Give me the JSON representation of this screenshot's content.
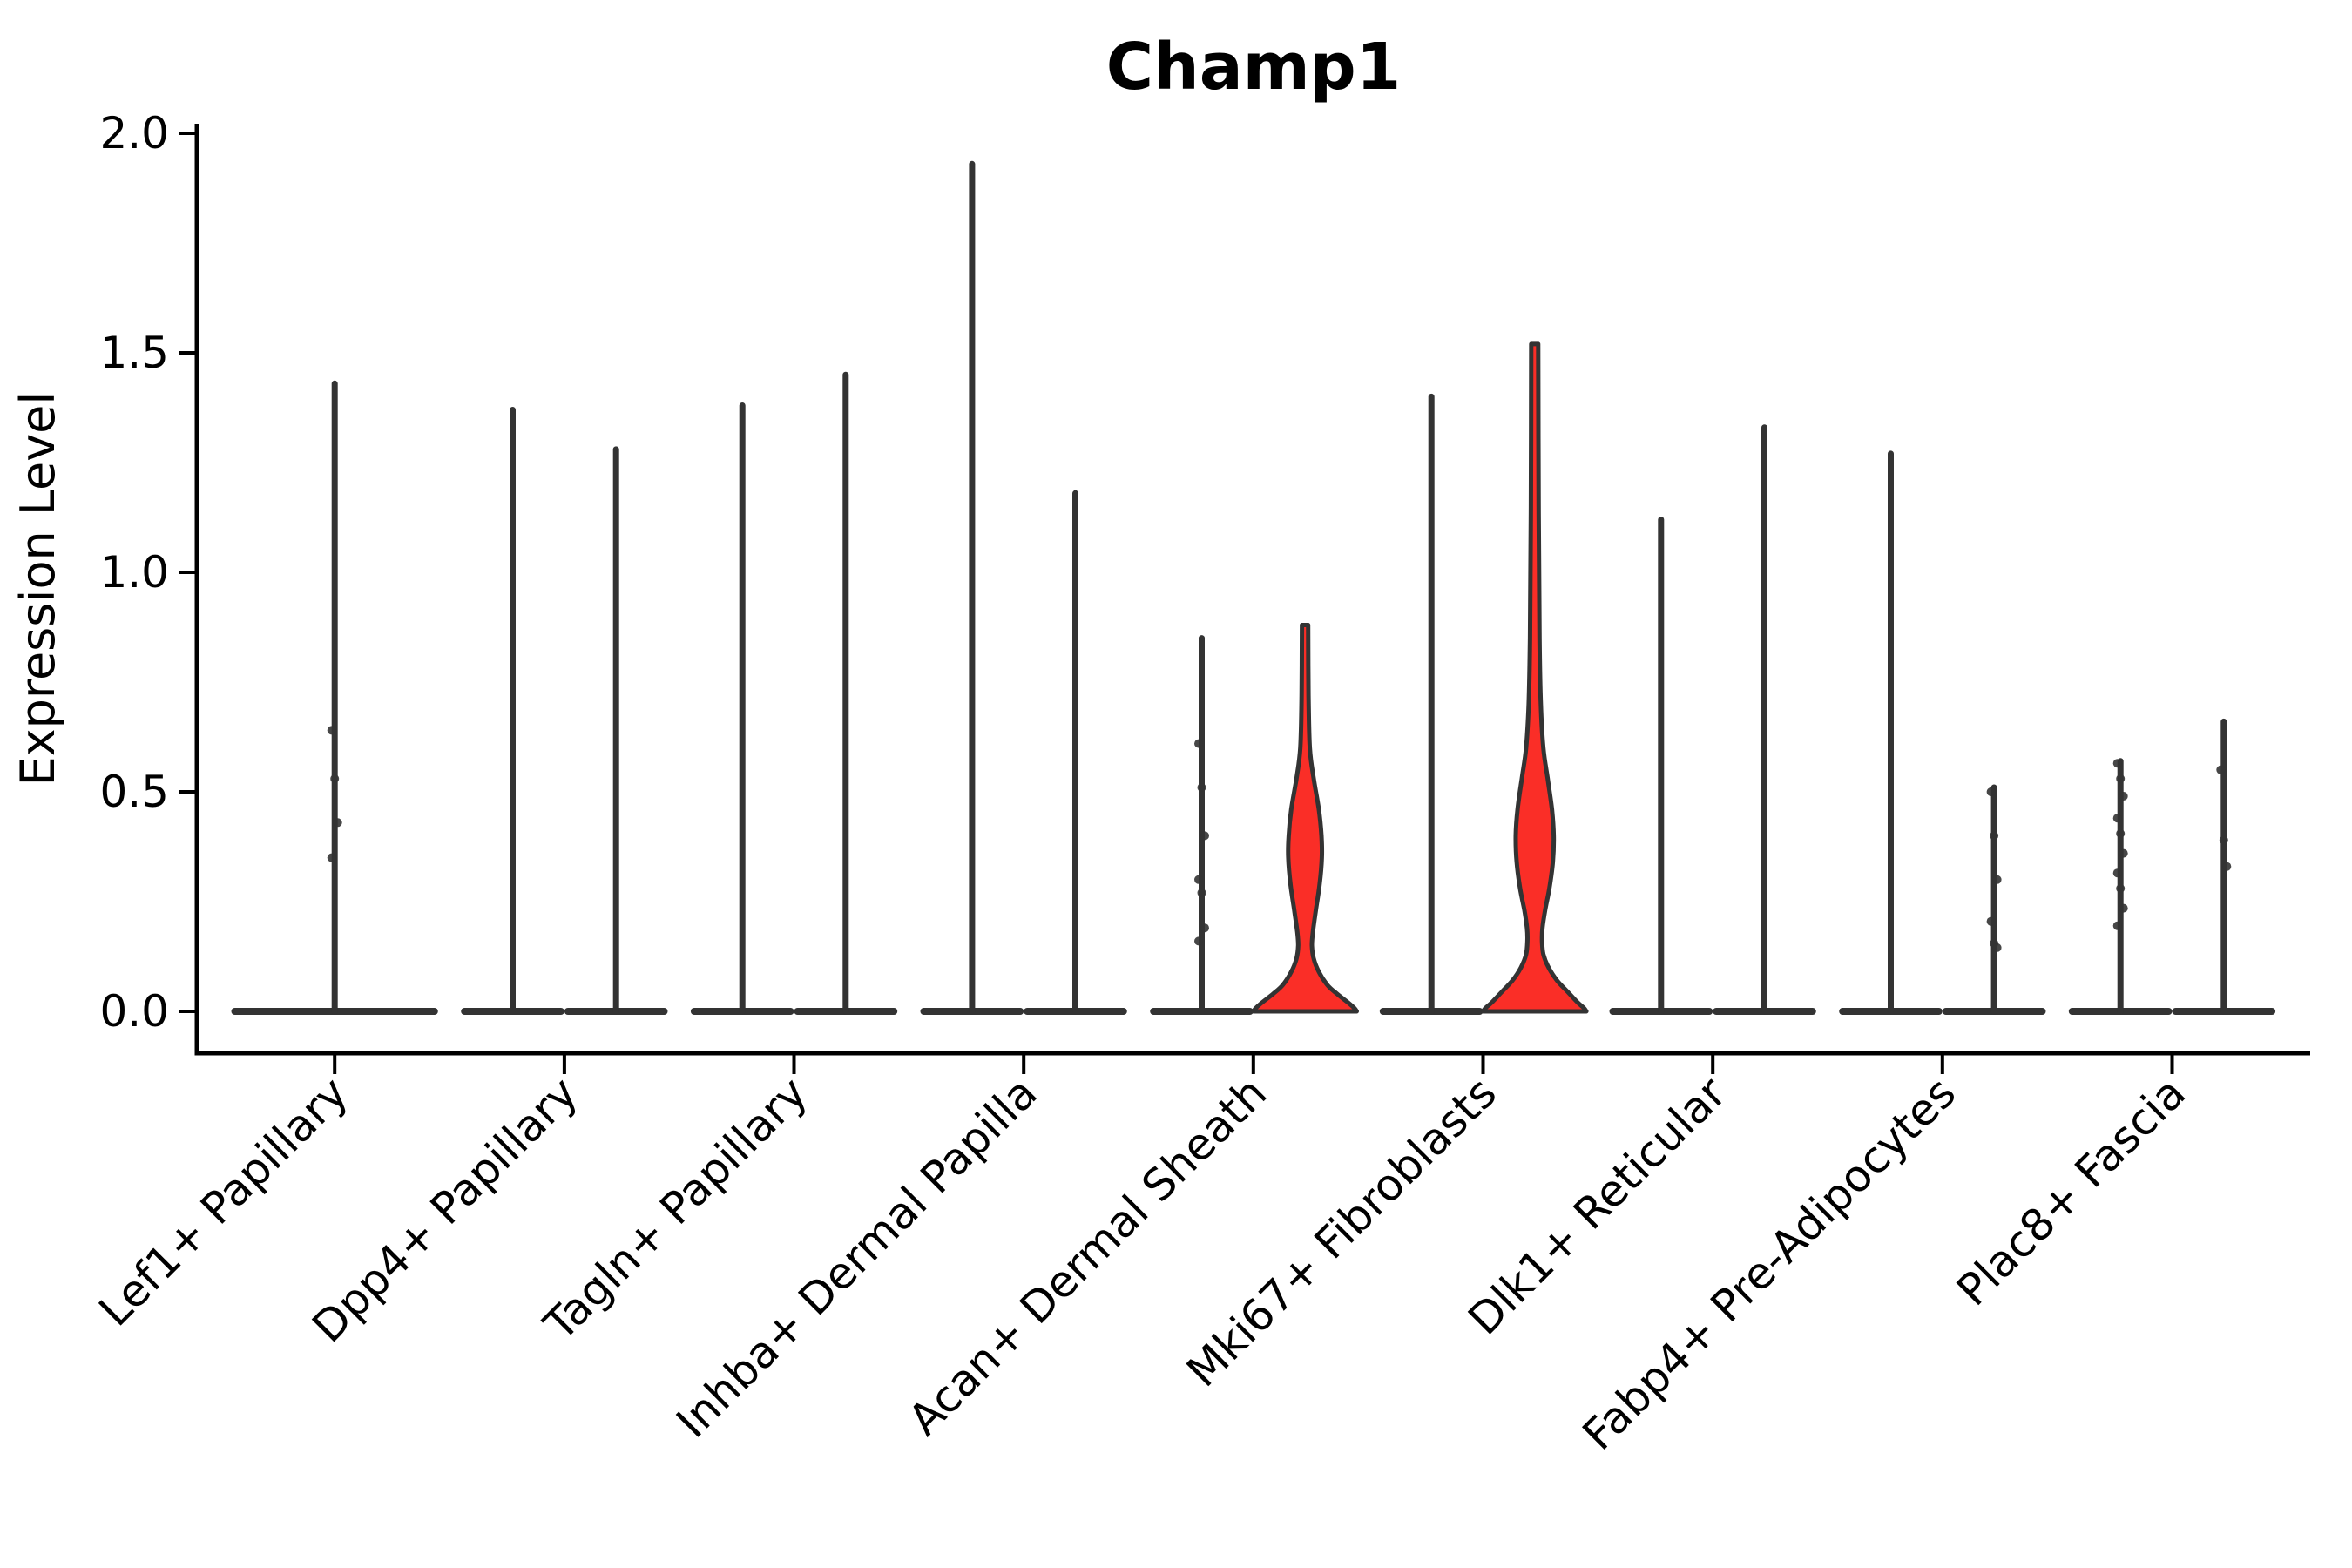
{
  "chart_data": {
    "type": "violin",
    "title": "Champ1",
    "ylabel": "Expression Level",
    "xlabel": "",
    "ylim": [
      0.0,
      2.0
    ],
    "yticks": [
      0.0,
      0.5,
      1.0,
      1.5,
      2.0
    ],
    "ytick_labels": [
      "0.0",
      "0.5",
      "1.0",
      "1.5",
      "2.0"
    ],
    "grid": false,
    "legend": "none",
    "colors": {
      "violin_stroke": "#333333",
      "highlight_fill": "#FA2E27",
      "axis": "#000000",
      "text": "#000000",
      "background": "#ffffff"
    },
    "categories": [
      {
        "label": "Lef1+ Papillary",
        "violins": [
          {
            "position": "center",
            "width": 0.9,
            "max": 1.43,
            "highlight": false,
            "dots": [
              0.64,
              0.53,
              0.43,
              0.35
            ]
          }
        ]
      },
      {
        "label": "Dpp4+ Papillary",
        "violins": [
          {
            "position": "left",
            "width": 0.45,
            "max": 1.37,
            "highlight": false,
            "dots": []
          },
          {
            "position": "right",
            "width": 0.45,
            "max": 1.28,
            "highlight": false,
            "dots": []
          }
        ]
      },
      {
        "label": "Tagln+ Papillary",
        "violins": [
          {
            "position": "left",
            "width": 0.45,
            "max": 1.38,
            "highlight": false,
            "dots": []
          },
          {
            "position": "right",
            "width": 0.45,
            "max": 1.45,
            "highlight": false,
            "dots": []
          }
        ]
      },
      {
        "label": "Inhba+ Dermal Papilla",
        "violins": [
          {
            "position": "left",
            "width": 0.45,
            "max": 1.93,
            "highlight": false,
            "dots": []
          },
          {
            "position": "right",
            "width": 0.45,
            "max": 1.18,
            "highlight": false,
            "dots": []
          }
        ]
      },
      {
        "label": "Acan+ Dermal Sheath",
        "violins": [
          {
            "position": "left",
            "width": 0.45,
            "max": 0.85,
            "highlight": false,
            "dots": [
              0.61,
              0.51,
              0.4,
              0.3,
              0.27,
              0.19,
              0.16
            ]
          },
          {
            "position": "right",
            "width": 0.45,
            "max": 0.88,
            "highlight": true,
            "dots": [],
            "profile": [
              [
                0.88,
                0.06
              ],
              [
                0.72,
                0.067
              ],
              [
                0.6,
                0.092
              ],
              [
                0.53,
                0.167
              ],
              [
                0.46,
                0.267
              ],
              [
                0.4,
                0.317
              ],
              [
                0.35,
                0.325
              ],
              [
                0.29,
                0.283
              ],
              [
                0.23,
                0.208
              ],
              [
                0.18,
                0.15
              ],
              [
                0.15,
                0.133
              ],
              [
                0.12,
                0.167
              ],
              [
                0.09,
                0.267
              ],
              [
                0.06,
                0.433
              ],
              [
                0.04,
                0.617
              ],
              [
                0.02,
                0.833
              ],
              [
                0.008,
                0.95
              ],
              [
                0.0,
                1.0
              ]
            ]
          }
        ]
      },
      {
        "label": "Mki67+ Fibroblasts",
        "violins": [
          {
            "position": "left",
            "width": 0.45,
            "max": 1.4,
            "highlight": false,
            "dots": []
          },
          {
            "position": "right",
            "width": 0.45,
            "max": 1.52,
            "highlight": true,
            "dots": [],
            "profile": [
              [
                1.52,
                0.067
              ],
              [
                1.15,
                0.075
              ],
              [
                0.85,
                0.092
              ],
              [
                0.7,
                0.117
              ],
              [
                0.6,
                0.167
              ],
              [
                0.53,
                0.25
              ],
              [
                0.46,
                0.333
              ],
              [
                0.4,
                0.367
              ],
              [
                0.34,
                0.35
              ],
              [
                0.28,
                0.283
              ],
              [
                0.23,
                0.2
              ],
              [
                0.19,
                0.15
              ],
              [
                0.16,
                0.142
              ],
              [
                0.13,
                0.167
              ],
              [
                0.1,
                0.267
              ],
              [
                0.07,
                0.433
              ],
              [
                0.045,
                0.633
              ],
              [
                0.02,
                0.833
              ],
              [
                0.008,
                0.95
              ],
              [
                0.0,
                1.0
              ]
            ]
          }
        ]
      },
      {
        "label": "Dlk1+ Reticular",
        "violins": [
          {
            "position": "left",
            "width": 0.45,
            "max": 1.12,
            "highlight": false,
            "dots": []
          },
          {
            "position": "right",
            "width": 0.45,
            "max": 1.33,
            "highlight": false,
            "dots": []
          }
        ]
      },
      {
        "label": "Fabp4+ Pre-Adipocytes",
        "violins": [
          {
            "position": "left",
            "width": 0.45,
            "max": 1.27,
            "highlight": false,
            "dots": []
          },
          {
            "position": "right",
            "width": 0.45,
            "max": 0.51,
            "highlight": false,
            "dots": [
              0.5,
              0.4,
              0.3,
              0.205,
              0.155,
              0.145
            ]
          }
        ]
      },
      {
        "label": "Plac8+ Fascia",
        "violins": [
          {
            "position": "left",
            "width": 0.45,
            "max": 0.57,
            "highlight": false,
            "dots": [
              0.565,
              0.53,
              0.49,
              0.44,
              0.405,
              0.36,
              0.315,
              0.28,
              0.235,
              0.195
            ]
          },
          {
            "position": "right",
            "width": 0.45,
            "max": 0.66,
            "highlight": false,
            "dots": [
              0.55,
              0.39,
              0.33
            ]
          }
        ]
      }
    ]
  }
}
